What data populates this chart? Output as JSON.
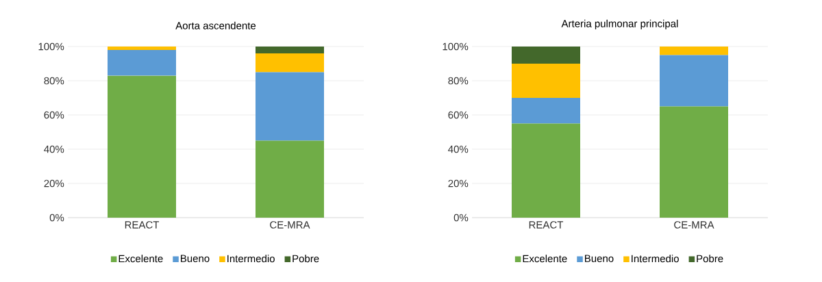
{
  "chart_data": [
    {
      "type": "bar",
      "title": "Aorta ascendente",
      "stacked": true,
      "categories": [
        "REACT",
        "CE-MRA"
      ],
      "series": [
        {
          "name": "Excelente",
          "color": "#70ad47",
          "values": [
            83,
            45
          ]
        },
        {
          "name": "Bueno",
          "color": "#5b9bd5",
          "values": [
            15,
            40
          ]
        },
        {
          "name": "Intermedio",
          "color": "#ffc000",
          "values": [
            2,
            11
          ]
        },
        {
          "name": "Pobre",
          "color": "#43682b",
          "values": [
            0,
            4
          ]
        }
      ],
      "ylim": [
        0,
        100
      ],
      "yticks": [
        {
          "value": 0,
          "label": "0%"
        },
        {
          "value": 20,
          "label": "20%"
        },
        {
          "value": 40,
          "label": "40%"
        },
        {
          "value": 60,
          "label": "60%"
        },
        {
          "value": 80,
          "label": "80%"
        },
        {
          "value": 100,
          "label": "100%"
        }
      ],
      "grid": "y",
      "legend": "bottom"
    },
    {
      "type": "bar",
      "title": "Arteria pulmonar principal",
      "stacked": true,
      "categories": [
        "REACT",
        "CE-MRA"
      ],
      "series": [
        {
          "name": "Excelente",
          "color": "#70ad47",
          "values": [
            55,
            65
          ]
        },
        {
          "name": "Bueno",
          "color": "#5b9bd5",
          "values": [
            15,
            30
          ]
        },
        {
          "name": "Intermedio",
          "color": "#ffc000",
          "values": [
            20,
            5
          ]
        },
        {
          "name": "Pobre",
          "color": "#43682b",
          "values": [
            10,
            0
          ]
        }
      ],
      "ylim": [
        0,
        100
      ],
      "yticks": [
        {
          "value": 0,
          "label": "0%"
        },
        {
          "value": 20,
          "label": "20%"
        },
        {
          "value": 40,
          "label": "40%"
        },
        {
          "value": 60,
          "label": "60%"
        },
        {
          "value": 80,
          "label": "80%"
        },
        {
          "value": 100,
          "label": "100%"
        }
      ],
      "grid": "y",
      "legend": "bottom"
    }
  ]
}
